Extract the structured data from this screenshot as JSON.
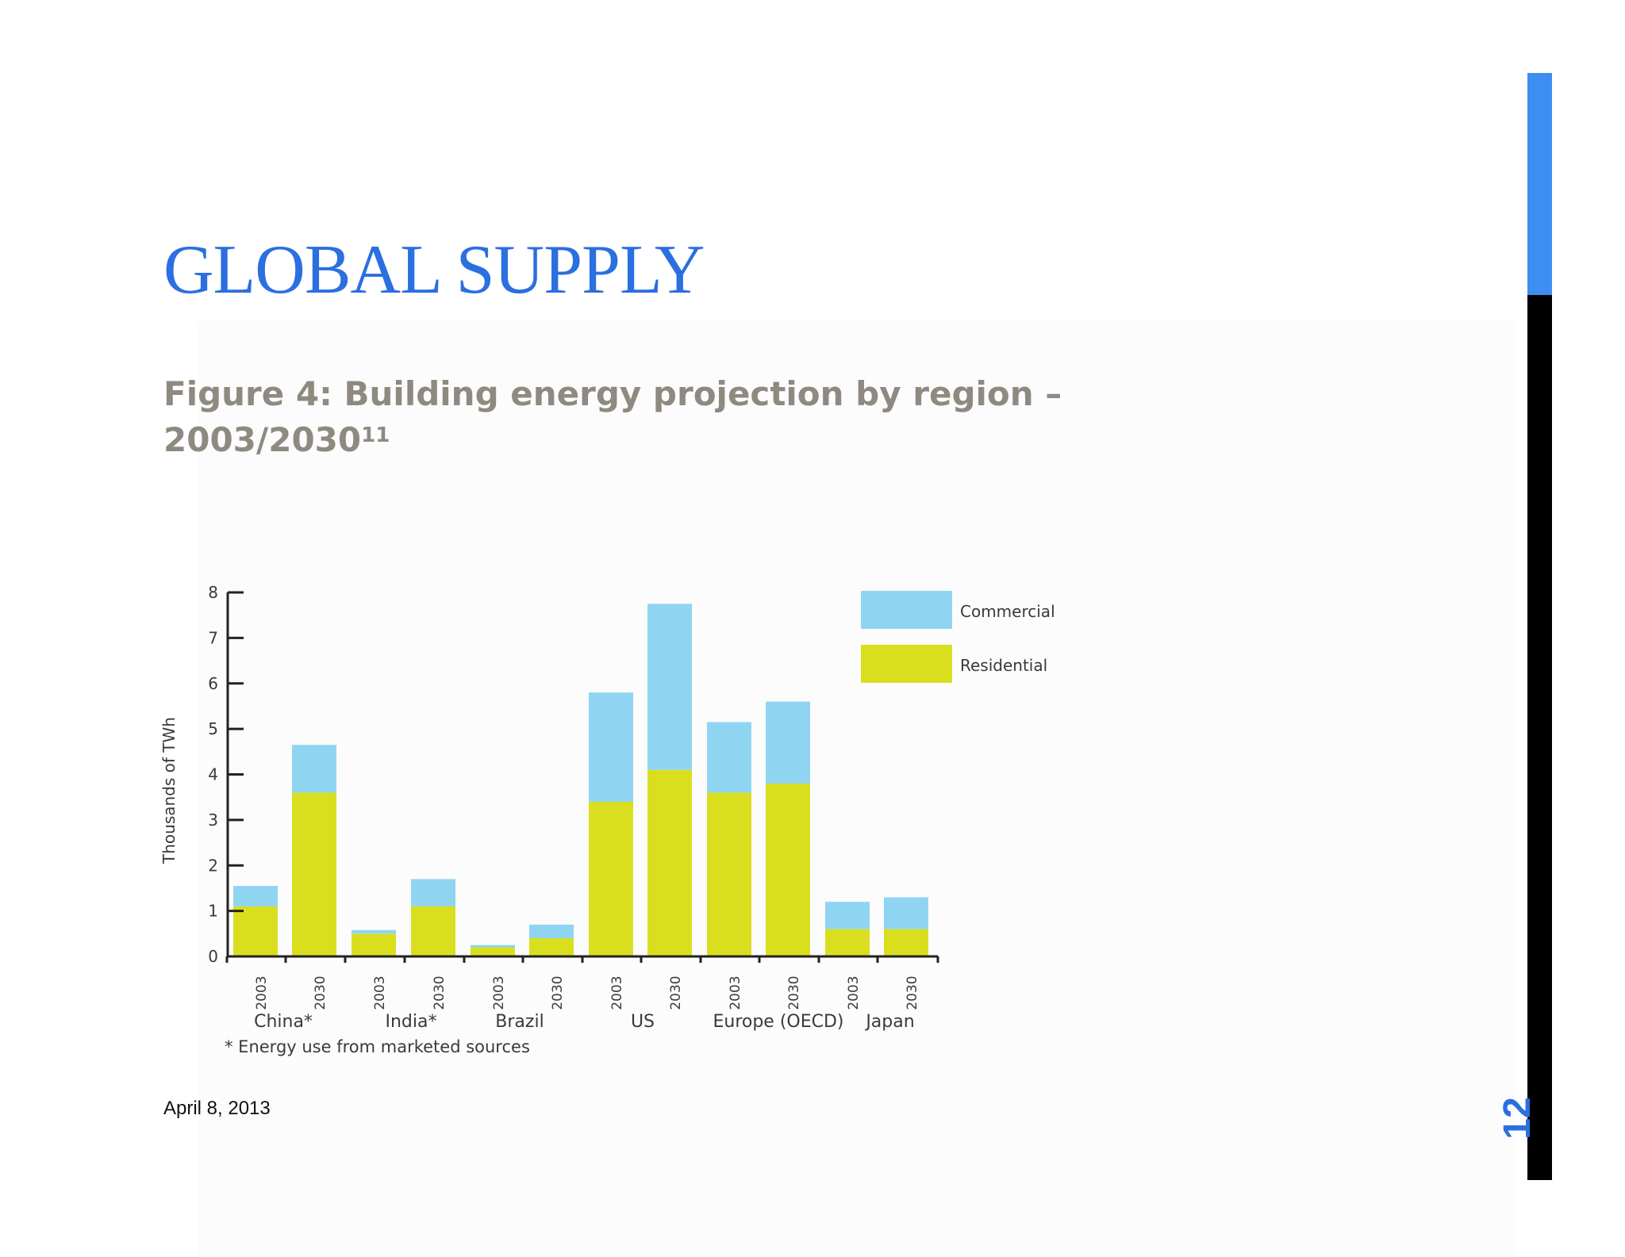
{
  "slide": {
    "title": "GLOBAL SUPPLY",
    "caption": "Figure 4: Building energy projection by region – 2003/2030",
    "caption_superscript": "11",
    "date": "April 8, 2013",
    "slide_number": "12",
    "accent_color": "#2b6fe0"
  },
  "chart_data": {
    "type": "bar",
    "stacked": true,
    "ylabel": "Thousands of TWh",
    "ylim": [
      0,
      8
    ],
    "yticks": [
      "0",
      "1",
      "2",
      "3",
      "4",
      "5",
      "6",
      "7",
      "8"
    ],
    "groups": [
      {
        "label": "China*",
        "bars": [
          "2003",
          "2030"
        ]
      },
      {
        "label": "India*",
        "bars": [
          "2003",
          "2030"
        ]
      },
      {
        "label": "Brazil",
        "bars": [
          "2003",
          "2030"
        ]
      },
      {
        "label": "US",
        "bars": [
          "2003",
          "2030"
        ]
      },
      {
        "label": "Europe (OECD)",
        "bars": [
          "2003",
          "2030"
        ]
      },
      {
        "label": "Japan",
        "bars": [
          "2003",
          "2030"
        ]
      }
    ],
    "categories": [
      "2003",
      "2030",
      "2003",
      "2030",
      "2003",
      "2030",
      "2003",
      "2030",
      "2003",
      "2030",
      "2003",
      "2030"
    ],
    "series": [
      {
        "name": "Residential",
        "color": "#d9df1f",
        "values": [
          1.1,
          3.6,
          0.5,
          1.1,
          0.2,
          0.4,
          3.4,
          4.1,
          3.6,
          3.8,
          0.6,
          0.6
        ]
      },
      {
        "name": "Commercial",
        "color": "#8fd5f2",
        "values": [
          0.45,
          1.05,
          0.08,
          0.6,
          0.05,
          0.3,
          2.4,
          3.65,
          1.55,
          1.8,
          0.6,
          0.7
        ]
      }
    ],
    "legend_order": [
      "Commercial",
      "Residential"
    ],
    "legend_position": "top-right",
    "footnote": "* Energy use from marketed sources",
    "grid": false
  }
}
